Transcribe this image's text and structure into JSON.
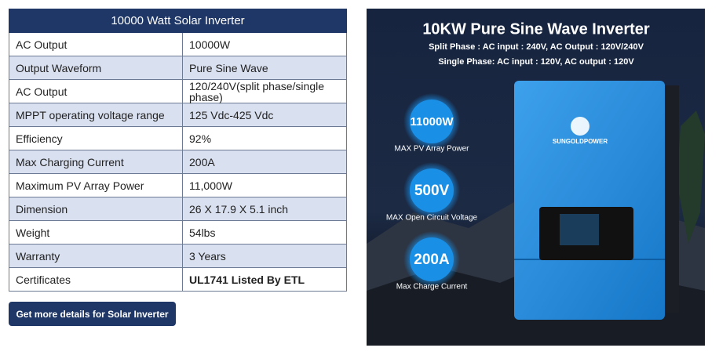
{
  "table": {
    "title": "10000 Watt Solar Inverter",
    "rows": [
      [
        "AC Output",
        "10000W"
      ],
      [
        "Output Waveform",
        "Pure Sine Wave"
      ],
      [
        "AC Output",
        "120/240V(split phase/single phase)"
      ],
      [
        "MPPT operating voltage range",
        "125 Vdc-425 Vdc"
      ],
      [
        "Efficiency",
        "92%"
      ],
      [
        "Max Charging Current",
        "200A"
      ],
      [
        "Maximum PV Array Power",
        "11,000W"
      ],
      [
        "Dimension",
        "26 X 17.9 X 5.1 inch"
      ],
      [
        "Weight",
        "54lbs"
      ],
      [
        "Warranty",
        "3 Years"
      ],
      [
        "Certificates",
        "UL1741 Listed By ETL"
      ]
    ]
  },
  "button": {
    "label": "Get more details for Solar Inverter"
  },
  "image": {
    "title": "10KW Pure Sine Wave Inverter",
    "lines": [
      "Split Phase : AC input : 240V, AC Output : 120V/240V",
      "Single Phase: AC input : 120V, AC output : 120V"
    ],
    "logo": "SUNGOLDPOWER",
    "badges": [
      {
        "value": "11000W",
        "label": "MAX PV Array Power"
      },
      {
        "value": "500V",
        "label": "MAX Open Circuit Voltage"
      },
      {
        "value": "200A",
        "label": "Max Charge Current"
      }
    ]
  }
}
